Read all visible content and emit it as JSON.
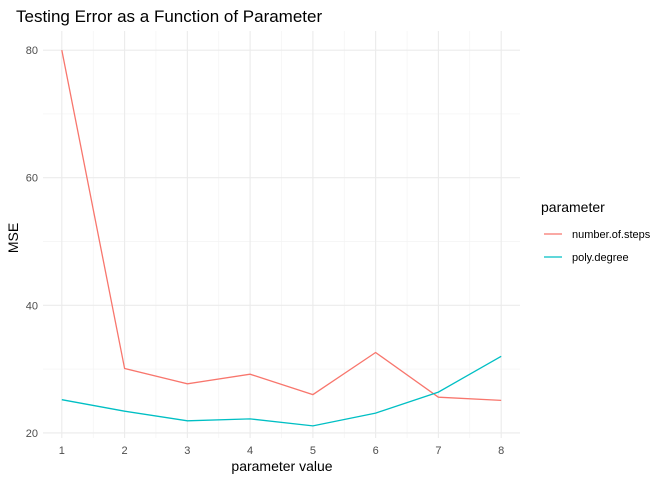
{
  "chart_data": {
    "type": "line",
    "title": "Testing Error as a Function of Parameter",
    "xlabel": "parameter value",
    "ylabel": "MSE",
    "x": [
      1,
      2,
      3,
      4,
      5,
      6,
      7,
      8
    ],
    "xlim": [
      0.7,
      8.3
    ],
    "ylim": [
      19.2,
      83.0
    ],
    "x_ticks": [
      1,
      2,
      3,
      4,
      5,
      6,
      7,
      8
    ],
    "y_ticks": [
      20,
      40,
      60,
      80
    ],
    "grid": true,
    "legend": {
      "title": "parameter",
      "position": "right"
    },
    "series": [
      {
        "name": "number.of.steps",
        "color": "#F8766D",
        "values": [
          80.0,
          30.1,
          27.7,
          29.2,
          26.0,
          32.6,
          25.6,
          25.1
        ]
      },
      {
        "name": "poly.degree",
        "color": "#00BFC4",
        "values": [
          25.2,
          23.4,
          21.9,
          22.2,
          21.1,
          23.1,
          26.4,
          32.0
        ]
      }
    ]
  }
}
